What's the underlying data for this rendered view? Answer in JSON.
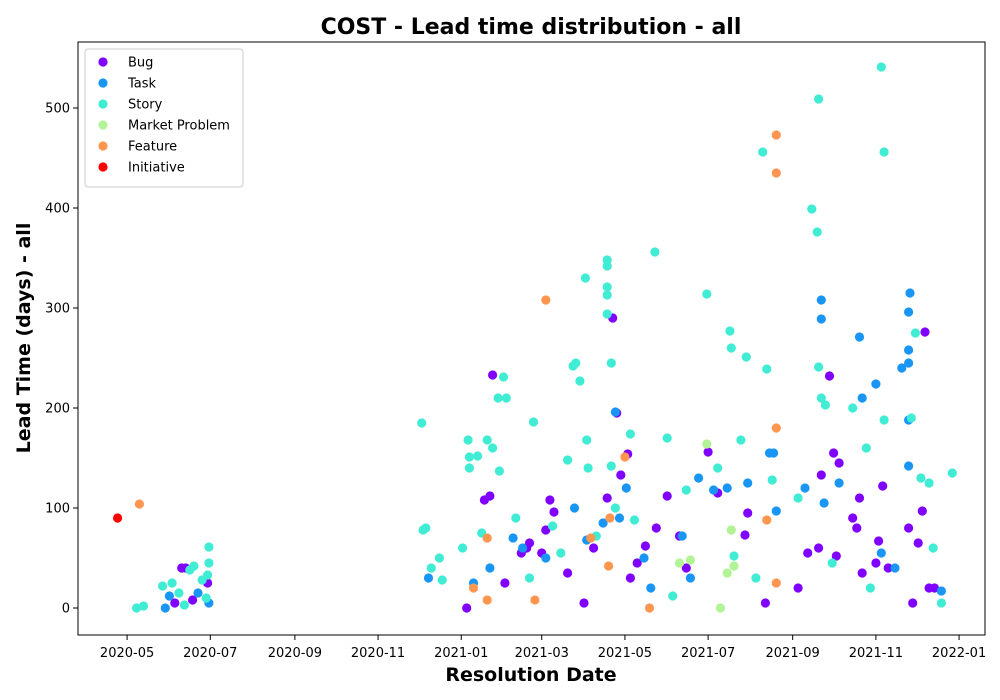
{
  "chart_data": {
    "type": "scatter",
    "title": "COST - Lead time distribution - all",
    "xlabel": "Resolution Date",
    "ylabel": "Lead Time (days) - all",
    "x_type": "date",
    "xlim": [
      "2020-03-26",
      "2022-01-20"
    ],
    "ylim": [
      -27,
      566
    ],
    "x_ticks": [
      {
        "date": "2020-05-01",
        "label": "2020-05"
      },
      {
        "date": "2020-07-01",
        "label": "2020-07"
      },
      {
        "date": "2020-09-01",
        "label": "2020-09"
      },
      {
        "date": "2020-11-01",
        "label": "2020-11"
      },
      {
        "date": "2021-01-01",
        "label": "2021-01"
      },
      {
        "date": "2021-03-01",
        "label": "2021-03"
      },
      {
        "date": "2021-05-01",
        "label": "2021-05"
      },
      {
        "date": "2021-07-01",
        "label": "2021-07"
      },
      {
        "date": "2021-09-01",
        "label": "2021-09"
      },
      {
        "date": "2021-11-01",
        "label": "2021-11"
      },
      {
        "date": "2022-01-01",
        "label": "2022-01"
      }
    ],
    "y_ticks": [
      0,
      100,
      200,
      300,
      400,
      500
    ],
    "grid": false,
    "legend_position": "top-left",
    "series": [
      {
        "name": "Bug",
        "color": "#8000ff",
        "points": [
          [
            "2020-06-05",
            5
          ],
          [
            "2020-06-10",
            40
          ],
          [
            "2020-06-13",
            40
          ],
          [
            "2020-06-18",
            8
          ],
          [
            "2020-06-29",
            25
          ],
          [
            "2021-01-05",
            0
          ],
          [
            "2021-01-18",
            108
          ],
          [
            "2021-01-22",
            112
          ],
          [
            "2021-01-24",
            233
          ],
          [
            "2021-02-02",
            25
          ],
          [
            "2021-02-14",
            55
          ],
          [
            "2021-02-18",
            60
          ],
          [
            "2021-02-20",
            65
          ],
          [
            "2021-03-01",
            55
          ],
          [
            "2021-03-04",
            78
          ],
          [
            "2021-03-07",
            108
          ],
          [
            "2021-03-10",
            96
          ],
          [
            "2021-03-20",
            35
          ],
          [
            "2021-04-01",
            5
          ],
          [
            "2021-04-08",
            60
          ],
          [
            "2021-04-18",
            110
          ],
          [
            "2021-04-22",
            290
          ],
          [
            "2021-04-25",
            195
          ],
          [
            "2021-04-28",
            133
          ],
          [
            "2021-05-03",
            154
          ],
          [
            "2021-05-05",
            30
          ],
          [
            "2021-05-10",
            45
          ],
          [
            "2021-05-16",
            62
          ],
          [
            "2021-05-24",
            80
          ],
          [
            "2021-06-01",
            112
          ],
          [
            "2021-06-10",
            72
          ],
          [
            "2021-06-15",
            40
          ],
          [
            "2021-07-01",
            156
          ],
          [
            "2021-07-08",
            115
          ],
          [
            "2021-07-28",
            73
          ],
          [
            "2021-07-30",
            95
          ],
          [
            "2021-08-12",
            5
          ],
          [
            "2021-09-05",
            20
          ],
          [
            "2021-09-12",
            55
          ],
          [
            "2021-09-20",
            60
          ],
          [
            "2021-09-22",
            133
          ],
          [
            "2021-09-28",
            232
          ],
          [
            "2021-10-01",
            155
          ],
          [
            "2021-10-03",
            52
          ],
          [
            "2021-10-05",
            145
          ],
          [
            "2021-10-15",
            90
          ],
          [
            "2021-10-18",
            80
          ],
          [
            "2021-10-20",
            110
          ],
          [
            "2021-10-22",
            35
          ],
          [
            "2021-11-01",
            45
          ],
          [
            "2021-11-03",
            67
          ],
          [
            "2021-11-06",
            122
          ],
          [
            "2021-11-10",
            40
          ],
          [
            "2021-11-25",
            80
          ],
          [
            "2021-11-28",
            5
          ],
          [
            "2021-12-02",
            65
          ],
          [
            "2021-12-05",
            97
          ],
          [
            "2021-12-07",
            276
          ],
          [
            "2021-12-10",
            20
          ],
          [
            "2021-12-14",
            20
          ]
        ]
      },
      {
        "name": "Task",
        "color": "#1996f3",
        "points": [
          [
            "2020-05-29",
            0
          ],
          [
            "2020-06-01",
            12
          ],
          [
            "2020-06-22",
            15
          ],
          [
            "2020-06-30",
            5
          ],
          [
            "2020-12-08",
            30
          ],
          [
            "2021-01-10",
            25
          ],
          [
            "2021-01-22",
            40
          ],
          [
            "2021-02-08",
            70
          ],
          [
            "2021-02-15",
            60
          ],
          [
            "2021-03-04",
            50
          ],
          [
            "2021-03-25",
            100
          ],
          [
            "2021-04-03",
            68
          ],
          [
            "2021-04-15",
            85
          ],
          [
            "2021-04-24",
            196
          ],
          [
            "2021-04-27",
            90
          ],
          [
            "2021-05-02",
            120
          ],
          [
            "2021-05-15",
            50
          ],
          [
            "2021-05-20",
            20
          ],
          [
            "2021-06-12",
            72
          ],
          [
            "2021-06-18",
            30
          ],
          [
            "2021-06-24",
            130
          ],
          [
            "2021-07-05",
            118
          ],
          [
            "2021-07-15",
            120
          ],
          [
            "2021-07-30",
            125
          ],
          [
            "2021-08-15",
            155
          ],
          [
            "2021-08-18",
            155
          ],
          [
            "2021-08-20",
            97
          ],
          [
            "2021-09-10",
            120
          ],
          [
            "2021-09-22",
            308
          ],
          [
            "2021-09-22",
            289
          ],
          [
            "2021-09-24",
            105
          ],
          [
            "2021-10-05",
            125
          ],
          [
            "2021-10-20",
            271
          ],
          [
            "2021-10-22",
            210
          ],
          [
            "2021-11-01",
            224
          ],
          [
            "2021-11-05",
            55
          ],
          [
            "2021-11-15",
            40
          ],
          [
            "2021-11-20",
            240
          ],
          [
            "2021-11-26",
            315
          ],
          [
            "2021-11-25",
            296
          ],
          [
            "2021-11-25",
            258
          ],
          [
            "2021-11-25",
            245
          ],
          [
            "2021-11-25",
            188
          ],
          [
            "2021-11-25",
            142
          ],
          [
            "2021-12-19",
            17
          ]
        ]
      },
      {
        "name": "Story",
        "color": "#40ecd4",
        "points": [
          [
            "2020-05-08",
            0
          ],
          [
            "2020-05-13",
            2
          ],
          [
            "2020-05-27",
            22
          ],
          [
            "2020-06-03",
            25
          ],
          [
            "2020-06-08",
            15
          ],
          [
            "2020-06-12",
            3
          ],
          [
            "2020-06-16",
            38
          ],
          [
            "2020-06-19",
            42
          ],
          [
            "2020-06-25",
            28
          ],
          [
            "2020-06-30",
            61
          ],
          [
            "2020-06-30",
            45
          ],
          [
            "2020-06-29",
            33
          ],
          [
            "2020-06-28",
            10
          ],
          [
            "2020-12-03",
            185
          ],
          [
            "2020-12-04",
            78
          ],
          [
            "2020-12-06",
            80
          ],
          [
            "2020-12-10",
            40
          ],
          [
            "2020-12-16",
            50
          ],
          [
            "2020-12-18",
            28
          ],
          [
            "2021-01-02",
            60
          ],
          [
            "2021-01-06",
            168
          ],
          [
            "2021-01-07",
            151
          ],
          [
            "2021-01-07",
            140
          ],
          [
            "2021-01-13",
            152
          ],
          [
            "2021-01-20",
            168
          ],
          [
            "2021-01-24",
            160
          ],
          [
            "2021-01-28",
            210
          ],
          [
            "2021-02-01",
            231
          ],
          [
            "2021-02-03",
            210
          ],
          [
            "2021-01-29",
            137
          ],
          [
            "2021-02-23",
            186
          ],
          [
            "2021-02-20",
            30
          ],
          [
            "2021-03-09",
            82
          ],
          [
            "2021-03-20",
            148
          ],
          [
            "2021-03-24",
            242
          ],
          [
            "2021-03-26",
            245
          ],
          [
            "2021-03-29",
            227
          ],
          [
            "2021-04-02",
            330
          ],
          [
            "2021-04-03",
            168
          ],
          [
            "2021-04-04",
            140
          ],
          [
            "2021-04-18",
            348
          ],
          [
            "2021-04-18",
            342
          ],
          [
            "2021-04-18",
            321
          ],
          [
            "2021-04-18",
            313
          ],
          [
            "2021-04-18",
            294
          ],
          [
            "2021-04-21",
            245
          ],
          [
            "2021-04-21",
            142
          ],
          [
            "2021-04-24",
            100
          ],
          [
            "2021-05-05",
            174
          ],
          [
            "2021-05-23",
            356
          ],
          [
            "2021-06-01",
            170
          ],
          [
            "2021-06-15",
            118
          ],
          [
            "2021-06-30",
            314
          ],
          [
            "2021-07-08",
            140
          ],
          [
            "2021-07-17",
            277
          ],
          [
            "2021-07-18",
            260
          ],
          [
            "2021-07-29",
            251
          ],
          [
            "2021-07-25",
            168
          ],
          [
            "2021-08-10",
            456
          ],
          [
            "2021-08-13",
            239
          ],
          [
            "2021-08-17",
            128
          ],
          [
            "2021-09-05",
            110
          ],
          [
            "2021-09-15",
            399
          ],
          [
            "2021-09-19",
            376
          ],
          [
            "2021-09-20",
            509
          ],
          [
            "2021-09-20",
            241
          ],
          [
            "2021-09-22",
            210
          ],
          [
            "2021-09-25",
            203
          ],
          [
            "2021-10-15",
            200
          ],
          [
            "2021-10-25",
            160
          ],
          [
            "2021-11-05",
            541
          ],
          [
            "2021-11-07",
            456
          ],
          [
            "2021-11-07",
            188
          ],
          [
            "2021-11-30",
            275
          ],
          [
            "2021-11-27",
            190
          ],
          [
            "2021-12-04",
            130
          ],
          [
            "2021-12-10",
            125
          ],
          [
            "2021-12-13",
            60
          ],
          [
            "2021-12-27",
            135
          ],
          [
            "2021-12-19",
            5
          ],
          [
            "2021-01-16",
            75
          ],
          [
            "2021-02-10",
            90
          ],
          [
            "2021-03-15",
            55
          ],
          [
            "2021-04-10",
            72
          ],
          [
            "2021-05-08",
            88
          ],
          [
            "2021-06-05",
            12
          ],
          [
            "2021-07-20",
            52
          ],
          [
            "2021-08-05",
            30
          ],
          [
            "2021-09-30",
            45
          ],
          [
            "2021-10-28",
            20
          ]
        ]
      },
      {
        "name": "Market Problem",
        "color": "#b2f396",
        "points": [
          [
            "2021-06-10",
            45
          ],
          [
            "2021-06-18",
            48
          ],
          [
            "2021-06-30",
            164
          ],
          [
            "2021-07-18",
            78
          ],
          [
            "2021-07-20",
            42
          ],
          [
            "2021-07-15",
            35
          ],
          [
            "2021-07-10",
            0
          ]
        ]
      },
      {
        "name": "Feature",
        "color": "#ff964f",
        "points": [
          [
            "2020-05-10",
            104
          ],
          [
            "2021-01-10",
            20
          ],
          [
            "2021-01-20",
            70
          ],
          [
            "2021-01-20",
            8
          ],
          [
            "2021-02-24",
            8
          ],
          [
            "2021-03-04",
            308
          ],
          [
            "2021-04-06",
            70
          ],
          [
            "2021-04-20",
            90
          ],
          [
            "2021-04-19",
            42
          ],
          [
            "2021-05-01",
            151
          ],
          [
            "2021-05-19",
            0
          ],
          [
            "2021-08-13",
            88
          ],
          [
            "2021-08-20",
            473
          ],
          [
            "2021-08-20",
            435
          ],
          [
            "2021-08-20",
            180
          ],
          [
            "2021-08-20",
            25
          ]
        ]
      },
      {
        "name": "Initiative",
        "color": "#ff0000",
        "points": [
          [
            "2020-04-24",
            90
          ]
        ]
      }
    ]
  }
}
